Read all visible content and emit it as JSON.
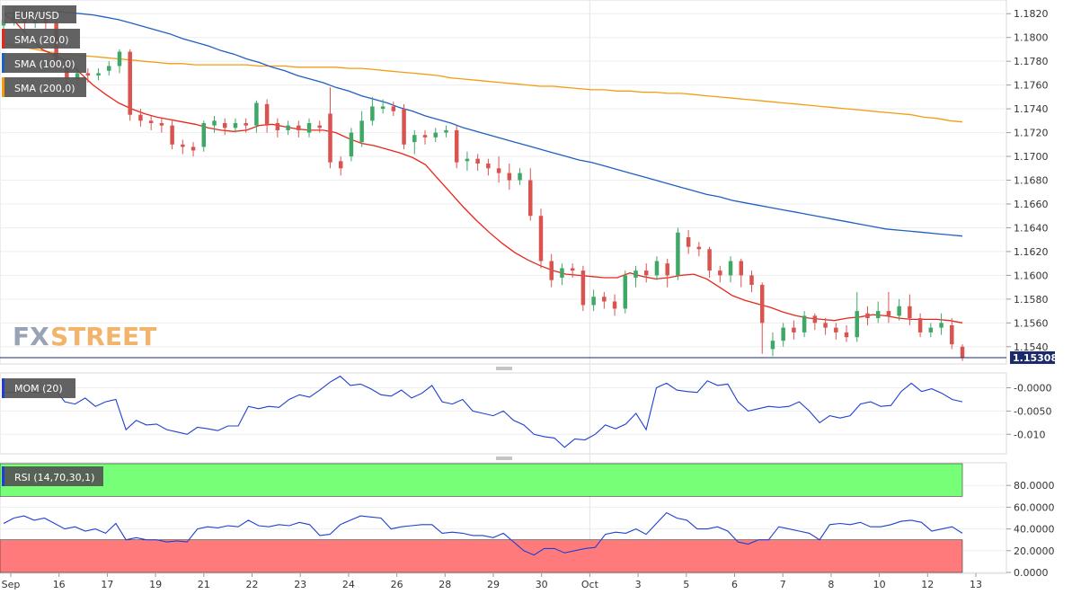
{
  "chart_data": [
    {
      "panel": "price",
      "type": "candlestick",
      "symbol": "EUR/USD",
      "last_price": "1.15308",
      "ylim": [
        1.1527,
        1.183
      ],
      "y_ticks": [
        "1.1820",
        "1.1800",
        "1.1780",
        "1.1760",
        "1.1740",
        "1.1720",
        "1.1700",
        "1.1680",
        "1.1660",
        "1.1640",
        "1.1620",
        "1.1600",
        "1.1580",
        "1.1560",
        "1.1540"
      ],
      "x_labels": [
        "Sep",
        "16",
        "17",
        "19",
        "21",
        "22",
        "23",
        "24",
        "26",
        "28",
        "29",
        "30",
        "Oct",
        "3",
        "5",
        "6",
        "7",
        "8",
        "10",
        "12",
        "13"
      ],
      "watermark": {
        "part1": "FX",
        "part2": "STREET"
      },
      "indicators": [
        {
          "name": "SMA (20,0)",
          "color": "#e8261b",
          "values": [
            1.182,
            1.1812,
            1.18,
            1.179,
            1.1785,
            1.178,
            1.177,
            1.176,
            1.1752,
            1.1745,
            1.174,
            1.1736,
            1.1733,
            1.1731,
            1.1729,
            1.1727,
            1.1724,
            1.1722,
            1.1721,
            1.1722,
            1.1726,
            1.1727,
            1.1725,
            1.1723,
            1.1722,
            1.1722,
            1.172,
            1.1715,
            1.1711,
            1.1709,
            1.1706,
            1.1703,
            1.1699,
            1.1693,
            1.1681,
            1.1669,
            1.1657,
            1.1646,
            1.1636,
            1.1627,
            1.1619,
            1.1613,
            1.1608,
            1.1604,
            1.1601,
            1.16,
            1.1599,
            1.1598,
            1.1598,
            1.1602,
            1.1599,
            1.1597,
            1.1598,
            1.16,
            1.1601,
            1.1597,
            1.159,
            1.1583,
            1.1579,
            1.1576,
            1.1573,
            1.1569,
            1.1566,
            1.1564,
            1.1563,
            1.1562,
            1.1564,
            1.1565,
            1.1567,
            1.1566,
            1.1564,
            1.1563,
            1.1563,
            1.1563,
            1.1562,
            1.156
          ]
        },
        {
          "name": "SMA (100,0)",
          "color": "#1f5fc1",
          "values": [
            1.182,
            1.1821,
            1.1822,
            1.1822,
            1.1822,
            1.1821,
            1.182,
            1.1819,
            1.1817,
            1.1815,
            1.1812,
            1.1809,
            1.1806,
            1.1803,
            1.1799,
            1.1796,
            1.1793,
            1.1789,
            1.1786,
            1.1782,
            1.1779,
            1.1775,
            1.1772,
            1.1768,
            1.1765,
            1.1762,
            1.1758,
            1.1755,
            1.1751,
            1.1748,
            1.1745,
            1.1741,
            1.1738,
            1.1734,
            1.1731,
            1.1728,
            1.1724,
            1.1721,
            1.1718,
            1.1715,
            1.1712,
            1.1709,
            1.1706,
            1.1703,
            1.17,
            1.1697,
            1.1695,
            1.1692,
            1.1689,
            1.1686,
            1.1683,
            1.168,
            1.1677,
            1.1674,
            1.1671,
            1.1668,
            1.1666,
            1.1663,
            1.1661,
            1.1659,
            1.1657,
            1.1655,
            1.1653,
            1.1651,
            1.1649,
            1.1647,
            1.1645,
            1.1643,
            1.1641,
            1.1639,
            1.1638,
            1.1637,
            1.1636,
            1.1635,
            1.1634,
            1.1633
          ]
        },
        {
          "name": "SMA (200,0)",
          "color": "#f39c12",
          "values": [
            1.1795,
            1.1793,
            1.1791,
            1.1789,
            1.1787,
            1.1786,
            1.1785,
            1.1784,
            1.1783,
            1.1782,
            1.1781,
            1.178,
            1.1779,
            1.1778,
            1.1778,
            1.1777,
            1.1777,
            1.1777,
            1.1777,
            1.1777,
            1.1776,
            1.1776,
            1.1776,
            1.1775,
            1.1775,
            1.1775,
            1.1775,
            1.1774,
            1.1774,
            1.1773,
            1.1772,
            1.1771,
            1.177,
            1.1769,
            1.1768,
            1.1766,
            1.1765,
            1.1764,
            1.1763,
            1.1762,
            1.1761,
            1.176,
            1.1759,
            1.1759,
            1.1758,
            1.1757,
            1.1756,
            1.1756,
            1.1755,
            1.1755,
            1.1754,
            1.1754,
            1.1753,
            1.1753,
            1.1752,
            1.1751,
            1.175,
            1.1749,
            1.1748,
            1.1747,
            1.1746,
            1.1745,
            1.1744,
            1.1743,
            1.1742,
            1.1741,
            1.174,
            1.1739,
            1.1738,
            1.1737,
            1.1736,
            1.1735,
            1.1733,
            1.1732,
            1.173,
            1.1729
          ]
        }
      ],
      "candles": [
        [
          1.181,
          1.1815,
          1.18,
          1.1818
        ],
        [
          1.1815,
          1.182,
          1.181,
          1.1825
        ],
        [
          1.1818,
          1.1812,
          1.1805,
          1.1822
        ],
        [
          1.1812,
          1.1818,
          1.1808,
          1.1822
        ],
        [
          1.1816,
          1.1812,
          1.1806,
          1.182
        ],
        [
          1.1812,
          1.1778,
          1.1774,
          1.1815
        ],
        [
          1.1776,
          1.1765,
          1.1758,
          1.1782
        ],
        [
          1.1765,
          1.177,
          1.176,
          1.1775
        ],
        [
          1.177,
          1.1768,
          1.1762,
          1.1774
        ],
        [
          1.1768,
          1.177,
          1.1764,
          1.1774
        ],
        [
          1.1772,
          1.1776,
          1.1768,
          1.178
        ],
        [
          1.1776,
          1.1788,
          1.177,
          1.179
        ],
        [
          1.1788,
          1.1735,
          1.173,
          1.179
        ],
        [
          1.1735,
          1.173,
          1.1725,
          1.174
        ],
        [
          1.173,
          1.1728,
          1.1722,
          1.1734
        ],
        [
          1.1728,
          1.1726,
          1.172,
          1.1732
        ],
        [
          1.1726,
          1.171,
          1.1706,
          1.173
        ],
        [
          1.171,
          1.1708,
          1.1702,
          1.1714
        ],
        [
          1.1708,
          1.1705,
          1.17,
          1.1712
        ],
        [
          1.1708,
          1.1728,
          1.1704,
          1.173
        ],
        [
          1.1726,
          1.173,
          1.172,
          1.1734
        ],
        [
          1.1728,
          1.1724,
          1.1718,
          1.1732
        ],
        [
          1.1724,
          1.1728,
          1.172,
          1.1732
        ],
        [
          1.1728,
          1.1726,
          1.172,
          1.1732
        ],
        [
          1.1726,
          1.1745,
          1.172,
          1.1747
        ],
        [
          1.1744,
          1.1726,
          1.172,
          1.1748
        ],
        [
          1.1728,
          1.1722,
          1.1716,
          1.1732
        ],
        [
          1.1722,
          1.1726,
          1.1718,
          1.173
        ],
        [
          1.1726,
          1.1722,
          1.1716,
          1.173
        ],
        [
          1.172,
          1.1728,
          1.1716,
          1.1732
        ],
        [
          1.1726,
          1.1724,
          1.172,
          1.173
        ],
        [
          1.1736,
          1.1695,
          1.169,
          1.1758
        ],
        [
          1.1696,
          1.169,
          1.1684,
          1.17
        ],
        [
          1.17,
          1.172,
          1.1696,
          1.1724
        ],
        [
          1.1712,
          1.173,
          1.1708,
          1.1738
        ],
        [
          1.173,
          1.1742,
          1.1726,
          1.175
        ],
        [
          1.174,
          1.1742,
          1.1736,
          1.1748
        ],
        [
          1.1742,
          1.1738,
          1.1734,
          1.1746
        ],
        [
          1.174,
          1.171,
          1.1706,
          1.1744
        ],
        [
          1.1712,
          1.1718,
          1.1702,
          1.1722
        ],
        [
          1.1718,
          1.1716,
          1.171,
          1.1722
        ],
        [
          1.1716,
          1.172,
          1.1712,
          1.1724
        ],
        [
          1.172,
          1.1722,
          1.1716,
          1.1726
        ],
        [
          1.1722,
          1.1695,
          1.169,
          1.1726
        ],
        [
          1.1696,
          1.1698,
          1.1688,
          1.1704
        ],
        [
          1.1698,
          1.1694,
          1.1688,
          1.1702
        ],
        [
          1.1694,
          1.169,
          1.1684,
          1.1698
        ],
        [
          1.169,
          1.1686,
          1.1678,
          1.17
        ],
        [
          1.1686,
          1.168,
          1.1672,
          1.1694
        ],
        [
          1.168,
          1.1686,
          1.1676,
          1.169
        ],
        [
          1.168,
          1.165,
          1.1646,
          1.169
        ],
        [
          1.165,
          1.1612,
          1.1606,
          1.1656
        ],
        [
          1.1612,
          1.1596,
          1.159,
          1.1618
        ],
        [
          1.1598,
          1.1606,
          1.1592,
          1.161
        ],
        [
          1.1606,
          1.1604,
          1.1598,
          1.161
        ],
        [
          1.1604,
          1.1575,
          1.157,
          1.1608
        ],
        [
          1.1575,
          1.1582,
          1.157,
          1.1588
        ],
        [
          1.1582,
          1.1578,
          1.1572,
          1.1586
        ],
        [
          1.1578,
          1.1572,
          1.1566,
          1.1584
        ],
        [
          1.1572,
          1.16,
          1.1568,
          1.1604
        ],
        [
          1.1598,
          1.1604,
          1.159,
          1.1608
        ],
        [
          1.1604,
          1.16,
          1.1594,
          1.161
        ],
        [
          1.16,
          1.1612,
          1.1596,
          1.1616
        ],
        [
          1.161,
          1.16,
          1.159,
          1.1614
        ],
        [
          1.16,
          1.1636,
          1.1596,
          1.164
        ],
        [
          1.1632,
          1.1624,
          1.1618,
          1.1638
        ],
        [
          1.1624,
          1.1622,
          1.1616,
          1.1628
        ],
        [
          1.1622,
          1.1604,
          1.1598,
          1.1624
        ],
        [
          1.1604,
          1.16,
          1.1594,
          1.1608
        ],
        [
          1.16,
          1.1612,
          1.1594,
          1.1616
        ],
        [
          1.1612,
          1.16,
          1.159,
          1.1614
        ],
        [
          1.16,
          1.1592,
          1.1586,
          1.1604
        ],
        [
          1.1592,
          1.156,
          1.1534,
          1.1594
        ],
        [
          1.1538,
          1.1545,
          1.1532,
          1.1552
        ],
        [
          1.1545,
          1.1556,
          1.154,
          1.156
        ],
        [
          1.1556,
          1.1552,
          1.1546,
          1.1562
        ],
        [
          1.1552,
          1.1566,
          1.1548,
          1.157
        ],
        [
          1.1566,
          1.156,
          1.1554,
          1.1568
        ],
        [
          1.156,
          1.1556,
          1.155,
          1.1564
        ],
        [
          1.1556,
          1.1552,
          1.1546,
          1.156
        ],
        [
          1.1552,
          1.1548,
          1.1544,
          1.1558
        ],
        [
          1.1548,
          1.157,
          1.1544,
          1.1586
        ],
        [
          1.1568,
          1.1564,
          1.1558,
          1.1574
        ],
        [
          1.1564,
          1.157,
          1.156,
          1.1578
        ],
        [
          1.157,
          1.1566,
          1.156,
          1.1586
        ],
        [
          1.1566,
          1.1574,
          1.1562,
          1.158
        ],
        [
          1.1574,
          1.1564,
          1.1558,
          1.1584
        ],
        [
          1.1564,
          1.1552,
          1.1548,
          1.1568
        ],
        [
          1.1552,
          1.1556,
          1.1548,
          1.156
        ],
        [
          1.1556,
          1.156,
          1.155,
          1.1568
        ],
        [
          1.1558,
          1.1542,
          1.1538,
          1.1564
        ],
        [
          1.154,
          1.1531,
          1.1528,
          1.1542
        ]
      ]
    },
    {
      "panel": "momentum",
      "type": "line",
      "name": "MOM (20)",
      "color": "#1f3fd1",
      "ylim": [
        -0.014,
        0.003
      ],
      "y_ticks": [
        {
          "v": 0.0,
          "t": "-0.0000"
        },
        {
          "v": -0.005,
          "t": "-0.0050"
        },
        {
          "v": -0.01,
          "t": "-0.010"
        }
      ],
      "values": [
        -0.001,
        -0.001,
        -0.0005,
        -0.001,
        -0.0008,
        -0.0002,
        -0.003,
        -0.0035,
        -0.0022,
        -0.004,
        -0.003,
        -0.0025,
        -0.009,
        -0.007,
        -0.008,
        -0.0078,
        -0.009,
        -0.0095,
        -0.01,
        -0.0085,
        -0.0088,
        -0.0092,
        -0.0082,
        -0.0082,
        -0.004,
        -0.0045,
        -0.004,
        -0.0042,
        -0.0025,
        -0.0015,
        -0.002,
        -0.0005,
        0.0012,
        0.0025,
        0.0005,
        0.0008,
        -0.0002,
        -0.0015,
        -0.0018,
        -0.0005,
        -0.0022,
        -0.0012,
        0.0005,
        -0.003,
        -0.0035,
        -0.0025,
        -0.005,
        -0.0055,
        -0.006,
        -0.005,
        -0.007,
        -0.008,
        -0.01,
        -0.0105,
        -0.0108,
        -0.0128,
        -0.011,
        -0.0112,
        -0.01,
        -0.008,
        -0.0088,
        -0.0078,
        -0.0055,
        -0.009,
        0.0,
        0.001,
        -0.0005,
        -0.0008,
        -0.001,
        0.0015,
        0.0005,
        0.0008,
        -0.003,
        -0.005,
        -0.0045,
        -0.004,
        -0.0042,
        -0.004,
        -0.003,
        -0.005,
        -0.0075,
        -0.006,
        -0.0065,
        -0.006,
        -0.0035,
        -0.003,
        -0.004,
        -0.0038,
        -0.0008,
        0.001,
        -0.0008,
        -0.0002,
        -0.0012,
        -0.0025,
        -0.003
      ]
    },
    {
      "panel": "rsi",
      "type": "line",
      "name": "RSI (14,70,30,1)",
      "color": "#1f3fd1",
      "ylim": [
        0,
        100
      ],
      "overbought": 70,
      "oversold": 30,
      "y_ticks": [
        {
          "v": 80,
          "t": "80.0000"
        },
        {
          "v": 60,
          "t": "60.0000"
        },
        {
          "v": 40,
          "t": "40.0000"
        },
        {
          "v": 20,
          "t": "20.0000"
        },
        {
          "v": 0,
          "t": "0.0000"
        }
      ],
      "values": [
        45,
        50,
        52,
        48,
        50,
        45,
        40,
        42,
        38,
        40,
        36,
        45,
        30,
        32,
        30,
        30,
        28,
        29,
        28,
        40,
        42,
        41,
        43,
        42,
        48,
        43,
        42,
        44,
        43,
        46,
        44,
        34,
        35,
        44,
        48,
        52,
        51,
        50,
        40,
        42,
        43,
        44,
        44,
        36,
        37,
        36,
        34,
        34,
        32,
        36,
        28,
        20,
        16,
        22,
        22,
        18,
        20,
        22,
        23,
        35,
        37,
        36,
        40,
        35,
        45,
        55,
        50,
        48,
        40,
        40,
        42,
        38,
        28,
        26,
        30,
        30,
        42,
        40,
        38,
        36,
        30,
        44,
        45,
        44,
        46,
        42,
        42,
        44,
        47,
        48,
        46,
        38,
        40,
        42,
        36
      ]
    }
  ],
  "labels": {
    "sma20": "SMA (20,0)",
    "sma100": "SMA (100,0)",
    "sma200": "SMA (200,0)",
    "mom": "MOM (20)",
    "rsi": "RSI (14,70,30,1)"
  },
  "colors": {
    "bull": "#3fa867",
    "bear": "#d9534f",
    "label_bg": "#555555",
    "rsi_overbought": "#78ff78",
    "rsi_oversold": "#ff7b7b",
    "price_line": "#1b2a6b",
    "price_badge": "#1b2a6b"
  }
}
